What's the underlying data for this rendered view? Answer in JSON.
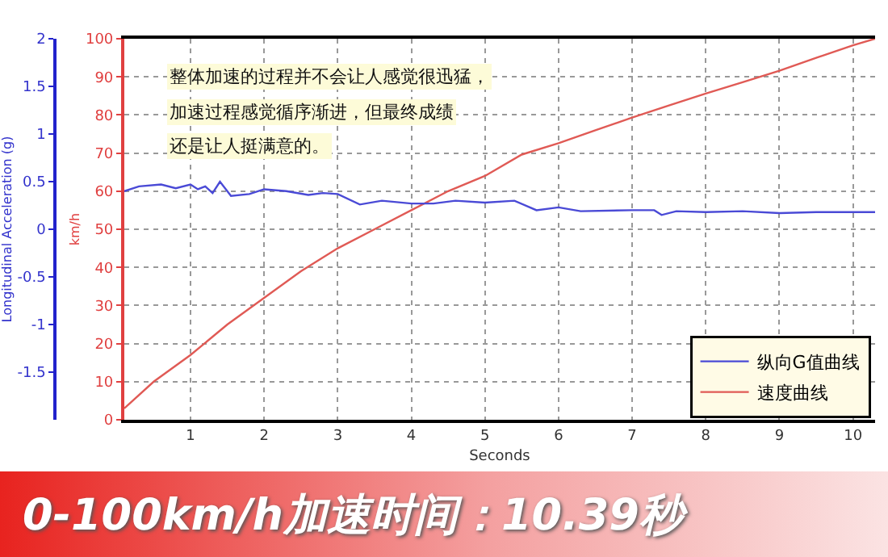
{
  "chart_data": {
    "type": "line",
    "title": "0-100km/h加速时间：10.39秒",
    "xlabel": "Seconds",
    "ylabel": "km/h",
    "y2label": "Longitudinal Acceleration (g)",
    "annotations": [
      "整体加速的过程并不会让人感觉很迅猛，",
      "加速过程感觉循序渐进，但最终成绩",
      "还是让人挺满意的。"
    ],
    "xlim": [
      0.1,
      10.3
    ],
    "xticks": [
      1,
      2,
      3,
      4,
      5,
      6,
      7,
      8,
      9,
      10
    ],
    "ylim": [
      0,
      100
    ],
    "yticks": [
      0,
      10,
      20,
      30,
      40,
      50,
      60,
      70,
      80,
      90,
      100
    ],
    "y2lim": [
      -2,
      2
    ],
    "y2ticks": [
      -1.5,
      -1,
      -0.5,
      0,
      0.5,
      1,
      1.5,
      2
    ],
    "grid": true,
    "legend": "bottom right",
    "line_style": "solid",
    "marker": "none",
    "series": [
      {
        "name": "纵向G值曲线",
        "color": "#4a4ad6",
        "axis": "y2",
        "x": [
          0.1,
          0.3,
          0.6,
          0.8,
          1.0,
          1.1,
          1.2,
          1.3,
          1.4,
          1.55,
          1.8,
          2.0,
          2.3,
          2.6,
          2.8,
          3.0,
          3.3,
          3.6,
          4.0,
          4.3,
          4.6,
          5.0,
          5.4,
          5.7,
          6.0,
          6.3,
          7.0,
          7.3,
          7.4,
          7.6,
          8.0,
          8.5,
          9.0,
          9.5,
          10.0,
          10.3
        ],
        "values": [
          0.4,
          0.45,
          0.47,
          0.43,
          0.47,
          0.42,
          0.45,
          0.38,
          0.5,
          0.35,
          0.37,
          0.42,
          0.4,
          0.36,
          0.38,
          0.37,
          0.26,
          0.3,
          0.27,
          0.27,
          0.3,
          0.28,
          0.3,
          0.2,
          0.23,
          0.19,
          0.2,
          0.2,
          0.15,
          0.19,
          0.18,
          0.19,
          0.17,
          0.18,
          0.18,
          0.18
        ]
      },
      {
        "name": "速度曲线",
        "color": "#e05a55",
        "x": [
          0.1,
          0.5,
          1.0,
          1.5,
          2.0,
          2.5,
          3.0,
          3.5,
          4.0,
          4.5,
          5.0,
          5.5,
          6.0,
          6.5,
          7.0,
          7.5,
          8.0,
          8.5,
          9.0,
          9.5,
          10.0,
          10.3
        ],
        "values": [
          3,
          10,
          17,
          25,
          32,
          39,
          45,
          50,
          55,
          60,
          64,
          69.6,
          72.6,
          76,
          79.3,
          82.5,
          85.6,
          88.6,
          91.6,
          95,
          98.3,
          100
        ]
      }
    ]
  }
}
